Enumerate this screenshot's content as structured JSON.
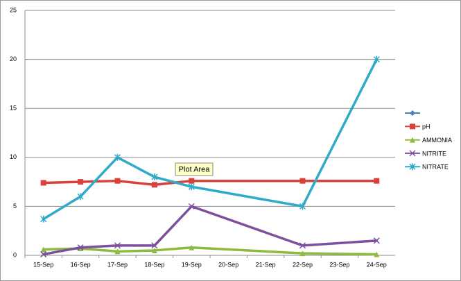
{
  "chart_data": {
    "type": "line",
    "categories": [
      "15-Sep",
      "16-Sep",
      "17-Sep",
      "18-Sep",
      "19-Sep",
      "20-Sep",
      "21-Sep",
      "22-Sep",
      "23-Sep",
      "24-Sep"
    ],
    "series": [
      {
        "name": null,
        "color": "#4a7ebb",
        "marker": "diamond",
        "values": [
          null,
          null,
          null,
          null,
          null,
          null,
          null,
          null,
          null,
          null
        ]
      },
      {
        "name": "pH",
        "color": "#d9413a",
        "marker": "square",
        "values": [
          7.4,
          7.5,
          7.6,
          7.2,
          7.6,
          null,
          null,
          7.6,
          null,
          7.6
        ]
      },
      {
        "name": "AMMONIA",
        "color": "#8dbb3e",
        "marker": "triangle",
        "values": [
          0.6,
          0.7,
          0.4,
          0.5,
          0.8,
          null,
          null,
          0.2,
          null,
          0.1
        ]
      },
      {
        "name": "NITRITE",
        "color": "#7e4f9e",
        "marker": "x",
        "values": [
          0.1,
          0.8,
          1.0,
          1.0,
          5.0,
          null,
          null,
          1.0,
          null,
          1.5
        ]
      },
      {
        "name": "NITRATE",
        "color": "#2faac8",
        "marker": "star",
        "values": [
          3.7,
          6.0,
          10.0,
          8.0,
          7.0,
          null,
          null,
          5.0,
          null,
          20.0
        ]
      }
    ],
    "connect_gaps": true,
    "ylim": [
      0,
      25
    ],
    "yticks": [
      0,
      5,
      10,
      15,
      20,
      25
    ],
    "grid": true,
    "legend": "right",
    "tooltip": "Plot Area"
  }
}
